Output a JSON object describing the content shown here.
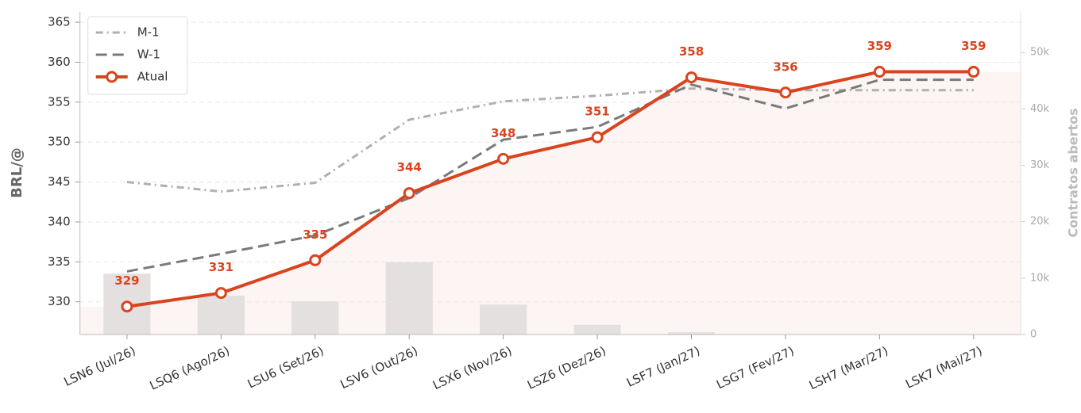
{
  "chart_data": {
    "type": "line",
    "ylabel": "BRL/@",
    "y2label": "Contratos abertos",
    "categories": [
      "LSN6 (Jul/26)",
      "LSQ6 (Ago/26)",
      "LSU6 (Set/26)",
      "LSV6 (Out/26)",
      "LSX6 (Nov/26)",
      "LSZ6 (Dez/26)",
      "LSF7 (Jan/27)",
      "LSG7 (Fev/27)",
      "LSH7 (Mar/27)",
      "LSK7 (Mai/27)"
    ],
    "series": [
      {
        "name": "M-1",
        "color": "#b0b0b0",
        "dash": "9,5,2,5",
        "values": [
          345.0,
          343.8,
          344.9,
          352.8,
          355.1,
          355.8,
          356.7,
          356.5,
          356.5,
          356.5
        ]
      },
      {
        "name": "W-1",
        "color": "#7a7a7a",
        "dash": "14,7",
        "values": [
          333.8,
          336.0,
          338.3,
          343.0,
          350.3,
          351.9,
          357.2,
          354.2,
          357.8,
          357.8
        ]
      },
      {
        "name": "Atual",
        "color": "#d9441f",
        "markers": true,
        "values": [
          329.4,
          331.1,
          335.2,
          343.6,
          347.9,
          350.6,
          358.1,
          356.2,
          358.8,
          358.8
        ],
        "value_labels": [
          "329",
          "331",
          "335",
          "344",
          "348",
          "351",
          "358",
          "356",
          "359",
          "359"
        ]
      },
      {
        "type": "bar",
        "axis": "y2",
        "color": "#e4e0df",
        "values": [
          10800,
          6900,
          5900,
          12800,
          5300,
          1700,
          400,
          0,
          0,
          0
        ]
      }
    ],
    "ylim": [
      325.9,
      366.3
    ],
    "yticks": [
      330,
      335,
      340,
      345,
      350,
      355,
      360,
      365
    ],
    "y2lim": [
      0,
      57200
    ],
    "y2ticks": [
      0,
      {
        "value": 10000,
        "label": "10k"
      },
      {
        "value": 20000,
        "label": "20k"
      },
      {
        "value": 30000,
        "label": "30k"
      },
      {
        "value": 40000,
        "label": "40k"
      },
      {
        "value": 50000,
        "label": "50k"
      }
    ],
    "grid": true,
    "legend": "upper left"
  }
}
